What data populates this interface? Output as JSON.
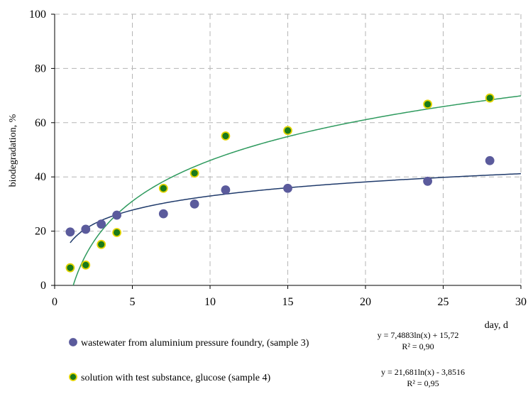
{
  "chart_data": {
    "type": "scatter",
    "xlabel": "day, d",
    "ylabel": "biodegradation, %",
    "xlim": [
      0,
      30
    ],
    "ylim": [
      0,
      100
    ],
    "x_ticks": [
      0,
      5,
      10,
      15,
      20,
      25,
      30
    ],
    "y_ticks": [
      0,
      20,
      40,
      60,
      80,
      100
    ],
    "grid": "dashed",
    "legend_position": "bottom",
    "series": [
      {
        "name": "wastewater from aluminium pressure foundry, (sample 3)",
        "marker_fill": "#5b5b9c",
        "marker_stroke": "#5b5b9c",
        "trend_color": "#1f3a6b",
        "trend_equation": "y = 7,4883ln(x) + 15,72",
        "r_squared": "R² = 0,90",
        "trend_a": 7.4883,
        "trend_b": 15.72,
        "points": [
          {
            "x": 1,
            "y": 19.7
          },
          {
            "x": 2,
            "y": 20.7
          },
          {
            "x": 3,
            "y": 22.6
          },
          {
            "x": 4,
            "y": 25.9
          },
          {
            "x": 7,
            "y": 26.4
          },
          {
            "x": 9,
            "y": 30.0
          },
          {
            "x": 11,
            "y": 35.2
          },
          {
            "x": 15,
            "y": 35.8
          },
          {
            "x": 24,
            "y": 38.4
          },
          {
            "x": 28,
            "y": 46.0
          }
        ]
      },
      {
        "name": "solution with test substance, glucose (sample 4)",
        "marker_fill": "#1a7a1a",
        "marker_stroke": "#e3d400",
        "trend_color": "#2e9a5e",
        "trend_equation": "y = 21,681ln(x) - 3,8516",
        "r_squared": "R² = 0,95",
        "trend_a": 21.681,
        "trend_b": -3.8516,
        "points": [
          {
            "x": 1,
            "y": 6.5
          },
          {
            "x": 2,
            "y": 7.5
          },
          {
            "x": 3,
            "y": 15.1
          },
          {
            "x": 4,
            "y": 19.5
          },
          {
            "x": 7,
            "y": 35.8
          },
          {
            "x": 9,
            "y": 41.4
          },
          {
            "x": 11,
            "y": 55.1
          },
          {
            "x": 15,
            "y": 57.1
          },
          {
            "x": 24,
            "y": 66.8
          },
          {
            "x": 28,
            "y": 69.1
          }
        ]
      }
    ]
  }
}
